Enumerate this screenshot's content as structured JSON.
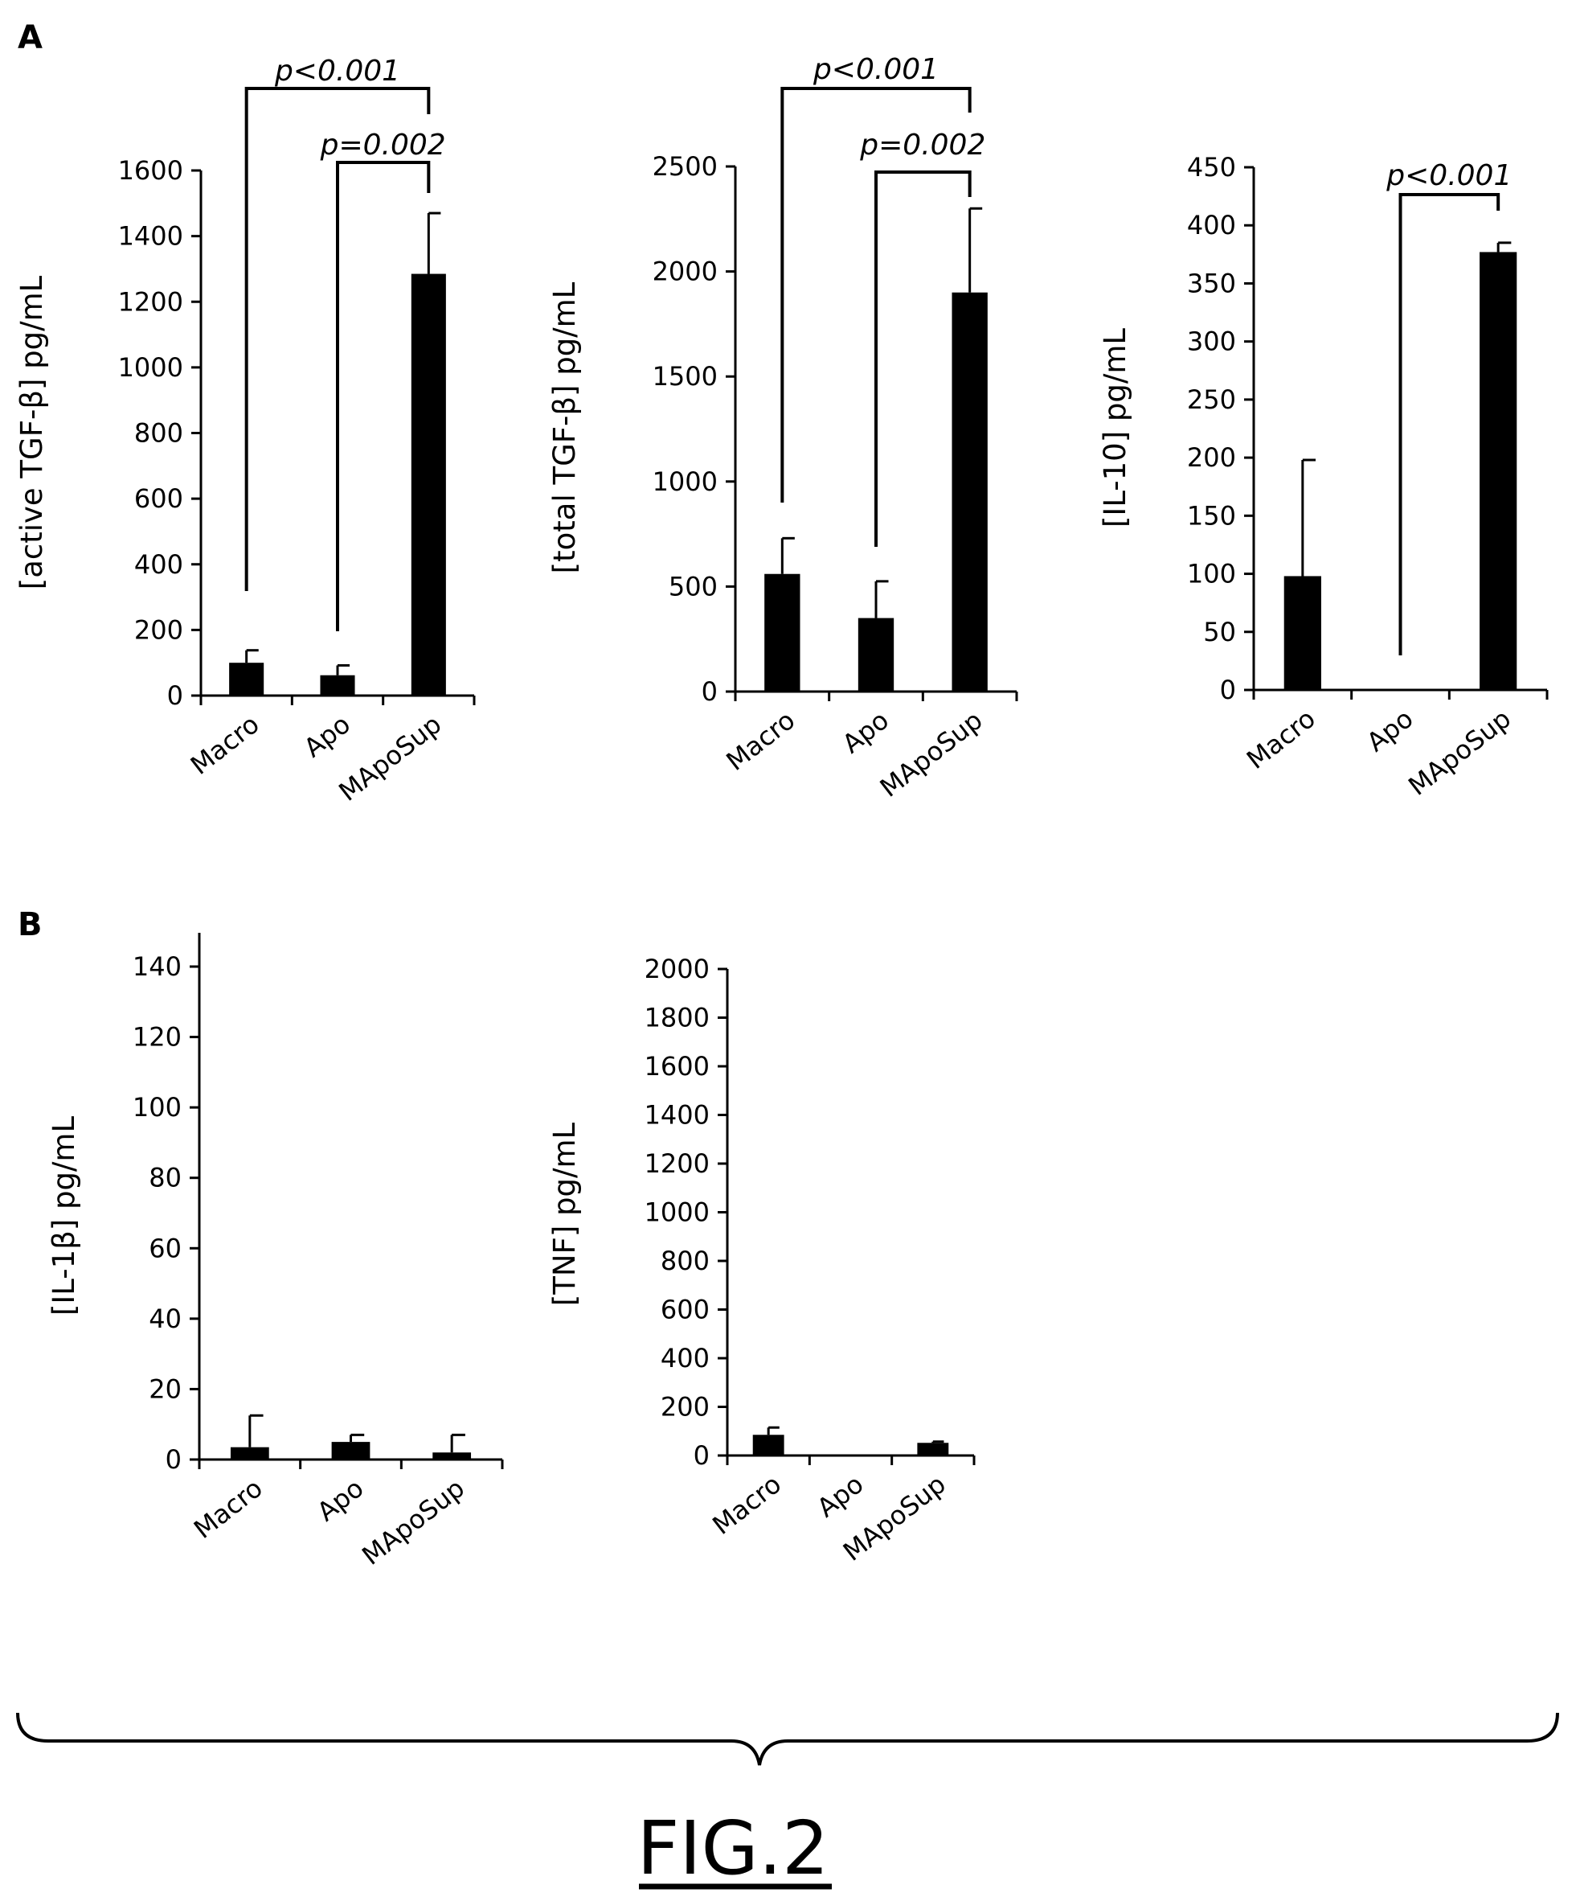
{
  "figure": {
    "panel_labels": [
      "A",
      "B"
    ],
    "title": "FIG.2"
  },
  "chart_data": [
    {
      "type": "bar",
      "panel": "A",
      "ylabel": "[active TGF-β] pg/mL",
      "categories": [
        "Macro",
        "Apo",
        "MApoSup"
      ],
      "values": [
        100,
        62,
        1285
      ],
      "errors": [
        38,
        30,
        185
      ],
      "ylim": [
        0,
        1600
      ],
      "yticks": [
        0,
        200,
        400,
        600,
        800,
        1000,
        1200,
        1400,
        1600
      ],
      "annotations": [
        {
          "text": "p<0.001",
          "from": "Macro",
          "to": "MApoSup"
        },
        {
          "text": "p=0.002",
          "from": "Apo",
          "to": "MApoSup"
        }
      ]
    },
    {
      "type": "bar",
      "panel": "A",
      "ylabel": "[total TGF-β] pg/mL",
      "categories": [
        "Macro",
        "Apo",
        "MApoSup"
      ],
      "values": [
        560,
        350,
        1900
      ],
      "errors": [
        170,
        175,
        400
      ],
      "ylim": [
        0,
        2500
      ],
      "yticks": [
        0,
        500,
        1000,
        1500,
        2000,
        2500
      ],
      "annotations": [
        {
          "text": "p<0.001",
          "from": "Macro",
          "to": "MApoSup"
        },
        {
          "text": "p=0.002",
          "from": "Apo",
          "to": "MApoSup"
        }
      ]
    },
    {
      "type": "bar",
      "panel": "A",
      "ylabel": "[IL-10] pg/mL",
      "categories": [
        "Macro",
        "Apo",
        "MApoSup"
      ],
      "values": [
        98,
        0,
        377
      ],
      "errors": [
        100,
        0,
        8
      ],
      "ylim": [
        0,
        450
      ],
      "yticks": [
        0,
        50,
        100,
        150,
        200,
        250,
        300,
        350,
        400,
        450
      ],
      "annotations": [
        {
          "text": "p<0.001",
          "from": "Apo",
          "to": "MApoSup"
        }
      ]
    },
    {
      "type": "bar",
      "panel": "B",
      "ylabel": "[IL-1β] pg/mL",
      "categories": [
        "Macro",
        "Apo",
        "MApoSup"
      ],
      "values": [
        3.5,
        5,
        2
      ],
      "errors": [
        9,
        2,
        5
      ],
      "ylim": [
        0,
        140
      ],
      "yticks": [
        0,
        20,
        40,
        60,
        80,
        100,
        120,
        140
      ],
      "annotations": []
    },
    {
      "type": "bar",
      "panel": "B",
      "ylabel": "[TNF] pg/mL",
      "categories": [
        "Macro",
        "Apo",
        "MApoSup"
      ],
      "values": [
        85,
        0,
        52
      ],
      "errors": [
        30,
        0,
        5
      ],
      "ylim": [
        0,
        2000
      ],
      "yticks": [
        0,
        200,
        400,
        600,
        800,
        1000,
        1200,
        1400,
        1600,
        1800,
        2000
      ],
      "annotations": []
    }
  ]
}
